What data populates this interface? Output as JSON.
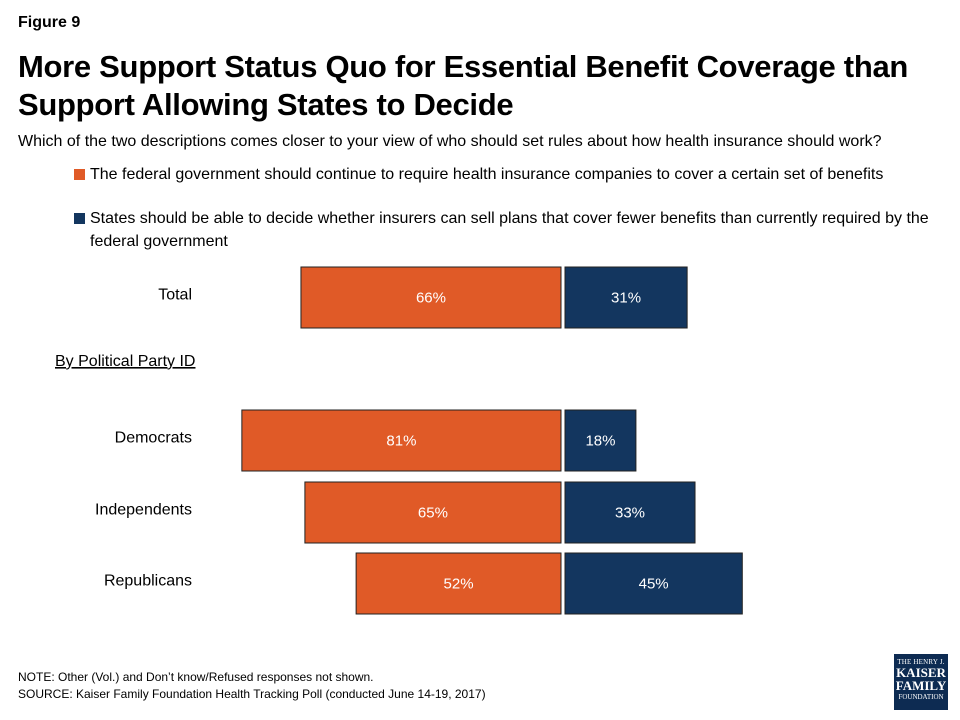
{
  "figure_label": "Figure 9",
  "title": "More Support Status Quo for Essential Benefit Coverage than Support Allowing States to Decide",
  "question": "Which of the two descriptions comes closer to your view of who should set rules about how health insurance should work?",
  "colors": {
    "federal": "#e05a27",
    "states": "#13365f"
  },
  "chart_data": {
    "type": "bar",
    "orientation": "diverging-horizontal",
    "categories": [
      "Total",
      "Democrats",
      "Independents",
      "Republicans"
    ],
    "group_label": "By Political Party ID",
    "series": [
      {
        "name": "The federal government should continue to require health insurance companies to cover a certain set of benefits",
        "values": [
          66,
          81,
          65,
          52
        ],
        "color": "#e05a27"
      },
      {
        "name": "States should be able to decide whether insurers can sell plans that cover fewer benefits than currently required by the federal government",
        "values": [
          31,
          18,
          33,
          45
        ],
        "color": "#13365f"
      }
    ],
    "value_suffix": "%"
  },
  "note": "NOTE: Other (Vol.) and Don’t know/Refused responses not shown.",
  "source": "SOURCE: Kaiser Family Foundation Health Tracking Poll (conducted June 14-19, 2017)",
  "logo": {
    "line1": "THE HENRY J.",
    "line2": "KAISER",
    "line3": "FAMILY",
    "line4": "FOUNDATION"
  }
}
